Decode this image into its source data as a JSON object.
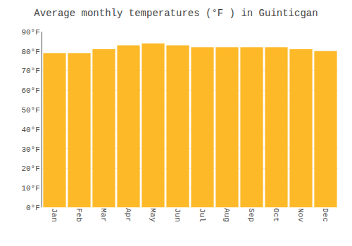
{
  "chart_data": {
    "type": "bar",
    "title": "Average monthly temperatures (°F ) in Guinticgan",
    "categories": [
      "Jan",
      "Feb",
      "Mar",
      "Apr",
      "May",
      "Jun",
      "Jul",
      "Aug",
      "Sep",
      "Oct",
      "Nov",
      "Dec"
    ],
    "values": [
      79,
      79,
      81,
      83,
      84,
      83,
      82,
      82,
      82,
      82,
      81,
      80
    ],
    "color": "#FDB927",
    "ylim": [
      0,
      90
    ],
    "yticks": [
      {
        "value": 0,
        "label": "0°F"
      },
      {
        "value": 10,
        "label": "10°F"
      },
      {
        "value": 20,
        "label": "20°F"
      },
      {
        "value": 30,
        "label": "30°F"
      },
      {
        "value": 40,
        "label": "40°F"
      },
      {
        "value": 50,
        "label": "50°F"
      },
      {
        "value": 60,
        "label": "60°F"
      },
      {
        "value": 70,
        "label": "70°F"
      },
      {
        "value": 80,
        "label": "80°F"
      },
      {
        "value": 90,
        "label": "90°F"
      }
    ],
    "grid": true
  }
}
